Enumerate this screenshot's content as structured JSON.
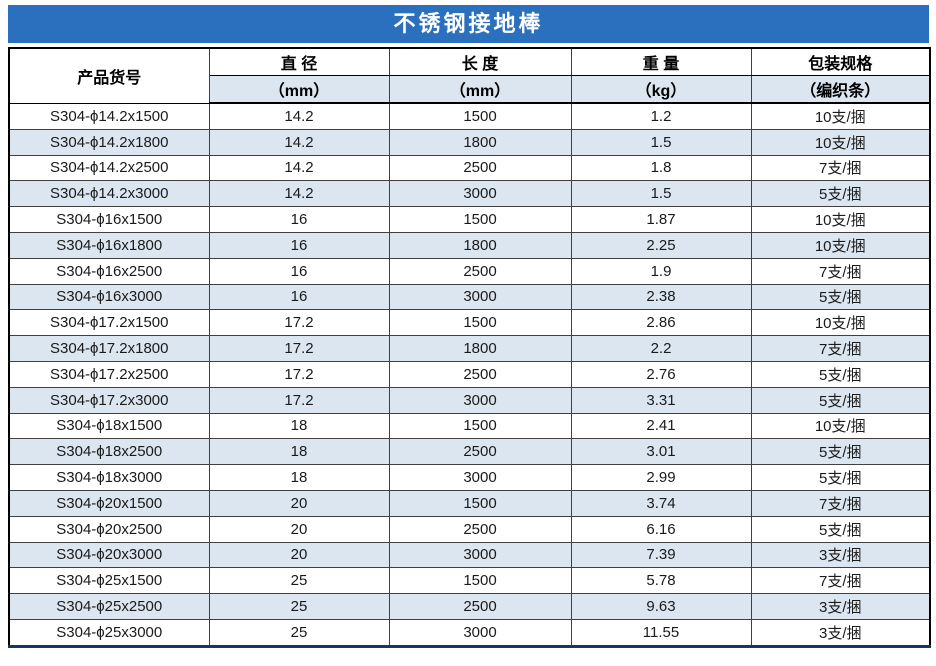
{
  "title": "不锈钢接地棒",
  "colors": {
    "title_bar_bg": "#2B70BE",
    "title_text": "#ffffff",
    "band_row_bg": "#DCE6F1",
    "grid_line": "#404040",
    "bottom_border": "#17375E"
  },
  "table": {
    "columns": [
      {
        "label": "产品货号",
        "unit": ""
      },
      {
        "label": "直 径",
        "unit": "（mm）"
      },
      {
        "label": "长 度",
        "unit": "（mm）"
      },
      {
        "label": "重 量",
        "unit": "（kg）"
      },
      {
        "label": "包装规格",
        "unit": "（编织条）"
      }
    ],
    "rows": [
      [
        "S304-ϕ14.2x1500",
        "14.2",
        "1500",
        "1.2",
        "10支/捆"
      ],
      [
        "S304-ϕ14.2x1800",
        "14.2",
        "1800",
        "1.5",
        "10支/捆"
      ],
      [
        "S304-ϕ14.2x2500",
        "14.2",
        "2500",
        "1.8",
        "7支/捆"
      ],
      [
        "S304-ϕ14.2x3000",
        "14.2",
        "3000",
        "1.5",
        "5支/捆"
      ],
      [
        "S304-ϕ16x1500",
        "16",
        "1500",
        "1.87",
        "10支/捆"
      ],
      [
        "S304-ϕ16x1800",
        "16",
        "1800",
        "2.25",
        "10支/捆"
      ],
      [
        "S304-ϕ16x2500",
        "16",
        "2500",
        "1.9",
        "7支/捆"
      ],
      [
        "S304-ϕ16x3000",
        "16",
        "3000",
        "2.38",
        "5支/捆"
      ],
      [
        "S304-ϕ17.2x1500",
        "17.2",
        "1500",
        "2.86",
        "10支/捆"
      ],
      [
        "S304-ϕ17.2x1800",
        "17.2",
        "1800",
        "2.2",
        "7支/捆"
      ],
      [
        "S304-ϕ17.2x2500",
        "17.2",
        "2500",
        "2.76",
        "5支/捆"
      ],
      [
        "S304-ϕ17.2x3000",
        "17.2",
        "3000",
        "3.31",
        "5支/捆"
      ],
      [
        "S304-ϕ18x1500",
        "18",
        "1500",
        "2.41",
        "10支/捆"
      ],
      [
        "S304-ϕ18x2500",
        "18",
        "2500",
        "3.01",
        "5支/捆"
      ],
      [
        "S304-ϕ18x3000",
        "18",
        "3000",
        "2.99",
        "5支/捆"
      ],
      [
        "S304-ϕ20x1500",
        "20",
        "1500",
        "3.74",
        "7支/捆"
      ],
      [
        "S304-ϕ20x2500",
        "20",
        "2500",
        "6.16",
        "5支/捆"
      ],
      [
        "S304-ϕ20x3000",
        "20",
        "3000",
        "7.39",
        "3支/捆"
      ],
      [
        "S304-ϕ25x1500",
        "25",
        "1500",
        "5.78",
        "7支/捆"
      ],
      [
        "S304-ϕ25x2500",
        "25",
        "2500",
        "9.63",
        "3支/捆"
      ],
      [
        "S304-ϕ25x3000",
        "25",
        "3000",
        "11.55",
        "3支/捆"
      ]
    ]
  }
}
